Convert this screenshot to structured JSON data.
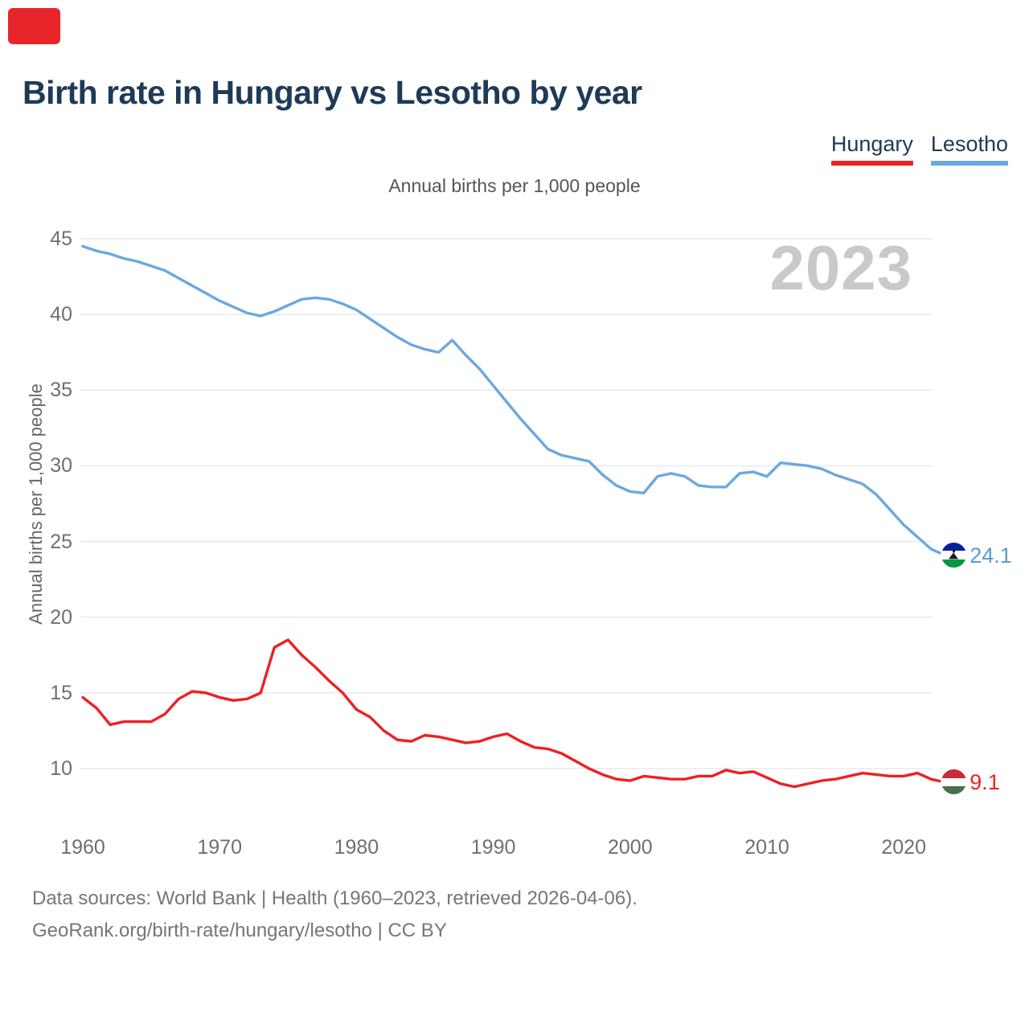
{
  "page": {
    "title": "Birth rate in Hungary vs Lesotho by year",
    "corner_marker_color": "#e8262a"
  },
  "legend": {
    "items": [
      {
        "label": "Hungary",
        "color": "#ee2024"
      },
      {
        "label": "Lesotho",
        "color": "#6ca8e0"
      }
    ]
  },
  "chart_data": {
    "type": "line",
    "title": "Birth rate in Hungary vs Lesotho by year",
    "subtitle": "Annual births per 1,000 people",
    "xlabel": "",
    "ylabel": "Annual births per 1,000 people",
    "watermark": "2023",
    "grid": "horizontal",
    "legend_position": "top-right",
    "xlim": [
      1960,
      2023
    ],
    "ylim": [
      10,
      45
    ],
    "x_ticks": [
      1960,
      1970,
      1980,
      1990,
      2000,
      2010,
      2020
    ],
    "y_ticks": [
      10,
      15,
      20,
      25,
      30,
      35,
      40,
      45
    ],
    "x": [
      1960,
      1961,
      1962,
      1963,
      1964,
      1965,
      1966,
      1967,
      1968,
      1969,
      1970,
      1971,
      1972,
      1973,
      1974,
      1975,
      1976,
      1977,
      1978,
      1979,
      1980,
      1981,
      1982,
      1983,
      1984,
      1985,
      1986,
      1987,
      1988,
      1989,
      1990,
      1991,
      1992,
      1993,
      1994,
      1995,
      1996,
      1997,
      1998,
      1999,
      2000,
      2001,
      2002,
      2003,
      2004,
      2005,
      2006,
      2007,
      2008,
      2009,
      2010,
      2011,
      2012,
      2013,
      2014,
      2015,
      2016,
      2017,
      2018,
      2019,
      2020,
      2021,
      2022,
      2023
    ],
    "series": [
      {
        "name": "Hungary",
        "color": "#ee2024",
        "label_color": "#ee2024",
        "end_label": "9.1",
        "flag": "hungary-flag-icon",
        "flag_bands": [
          "#ce2939",
          "#ffffff",
          "#477050"
        ],
        "values": [
          14.7,
          14.0,
          12.9,
          13.1,
          13.1,
          13.1,
          13.6,
          14.6,
          15.1,
          15.0,
          14.7,
          14.5,
          14.6,
          15.0,
          18.0,
          18.5,
          17.5,
          16.7,
          15.8,
          15.0,
          13.9,
          13.4,
          12.5,
          11.9,
          11.8,
          12.2,
          12.1,
          11.9,
          11.7,
          11.8,
          12.1,
          12.3,
          11.8,
          11.4,
          11.3,
          11.0,
          10.5,
          10.0,
          9.6,
          9.3,
          9.2,
          9.5,
          9.4,
          9.3,
          9.3,
          9.5,
          9.5,
          9.9,
          9.7,
          9.8,
          9.4,
          9.0,
          8.8,
          9.0,
          9.2,
          9.3,
          9.5,
          9.7,
          9.6,
          9.5,
          9.5,
          9.7,
          9.3,
          9.1
        ]
      },
      {
        "name": "Lesotho",
        "color": "#6ca8e0",
        "label_color": "#5b9bd5",
        "end_label": "24.1",
        "flag": "lesotho-flag-icon",
        "flag_bands": [
          "#00209f",
          "#ffffff",
          "#009543"
        ],
        "values": [
          44.5,
          44.2,
          44.0,
          43.7,
          43.5,
          43.2,
          42.9,
          42.4,
          41.9,
          41.4,
          40.9,
          40.5,
          40.1,
          39.9,
          40.2,
          40.6,
          41.0,
          41.1,
          41.0,
          40.7,
          40.3,
          39.7,
          39.1,
          38.5,
          38.0,
          37.7,
          37.5,
          38.3,
          37.3,
          36.4,
          35.3,
          34.2,
          33.1,
          32.1,
          31.1,
          30.7,
          30.5,
          30.3,
          29.4,
          28.7,
          28.3,
          28.2,
          29.3,
          29.5,
          29.3,
          28.7,
          28.6,
          28.6,
          29.5,
          29.6,
          29.3,
          30.2,
          30.1,
          30.0,
          29.8,
          29.4,
          29.1,
          28.8,
          28.1,
          27.1,
          26.1,
          25.3,
          24.5,
          24.1
        ]
      }
    ]
  },
  "footer": {
    "line1": "Data sources: World Bank | Health (1960–2023, retrieved 2026-04-06).",
    "line2": "GeoRank.org/birth-rate/hungary/lesotho | CC BY"
  }
}
